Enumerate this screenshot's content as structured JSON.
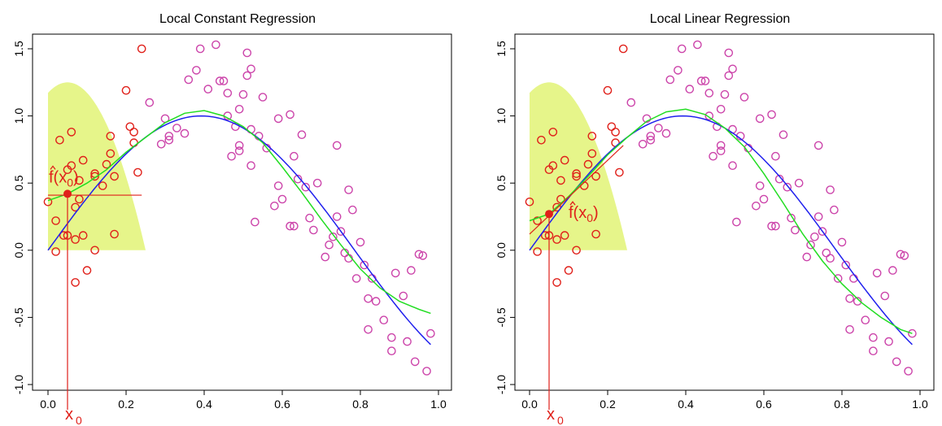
{
  "chart_data": [
    {
      "type": "scatter",
      "title": "Local Constant Regression",
      "xlabel": "",
      "ylabel": "",
      "xlim": [
        0,
        1
      ],
      "ylim": [
        -1,
        1.5
      ],
      "x_ticks": [
        "0.0",
        "0.2",
        "0.4",
        "0.6",
        "0.8",
        "1.0"
      ],
      "y_ticks": [
        "-1.0",
        "-0.5",
        "0.0",
        "0.5",
        "1.0",
        "1.5"
      ],
      "grid": false,
      "x0": 0.05,
      "x0_label": "x",
      "x0_label_sub": "0",
      "fhat_label": "f(x",
      "fhat_label_sub": "0",
      "fhat_label_close": ")",
      "fhat_value": 0.42,
      "fit": {
        "type": "constant",
        "value": 0.41,
        "range": [
          0.0,
          0.24
        ]
      },
      "kernel": {
        "center": 0.05,
        "bandwidth": 0.2,
        "height": 1.25,
        "shape": "epanechnikov",
        "color": "#e6f58a"
      },
      "points": [
        [
          0.0,
          0.36
        ],
        [
          0.02,
          -0.01
        ],
        [
          0.02,
          0.22
        ],
        [
          0.03,
          0.82
        ],
        [
          0.04,
          0.11
        ],
        [
          0.05,
          0.6
        ],
        [
          0.05,
          0.11
        ],
        [
          0.06,
          0.63
        ],
        [
          0.06,
          0.88
        ],
        [
          0.07,
          0.08
        ],
        [
          0.07,
          0.32
        ],
        [
          0.07,
          -0.24
        ],
        [
          0.08,
          0.38
        ],
        [
          0.08,
          0.52
        ],
        [
          0.09,
          0.11
        ],
        [
          0.09,
          0.67
        ],
        [
          0.1,
          -0.15
        ],
        [
          0.12,
          0.55
        ],
        [
          0.12,
          0.57
        ],
        [
          0.12,
          0.0
        ],
        [
          0.14,
          0.48
        ],
        [
          0.15,
          0.64
        ],
        [
          0.16,
          0.72
        ],
        [
          0.16,
          0.85
        ],
        [
          0.17,
          0.12
        ],
        [
          0.17,
          0.55
        ],
        [
          0.2,
          1.19
        ],
        [
          0.21,
          0.92
        ],
        [
          0.22,
          0.88
        ],
        [
          0.22,
          0.8
        ],
        [
          0.23,
          0.58
        ],
        [
          0.24,
          1.5
        ],
        [
          0.26,
          1.1
        ],
        [
          0.29,
          0.79
        ],
        [
          0.3,
          0.98
        ],
        [
          0.31,
          0.85
        ],
        [
          0.31,
          0.82
        ],
        [
          0.33,
          0.91
        ],
        [
          0.35,
          0.87
        ],
        [
          0.36,
          1.27
        ],
        [
          0.38,
          1.34
        ],
        [
          0.39,
          1.5
        ],
        [
          0.41,
          1.2
        ],
        [
          0.43,
          1.53
        ],
        [
          0.44,
          1.26
        ],
        [
          0.45,
          1.26
        ],
        [
          0.46,
          1.17
        ],
        [
          0.46,
          1.0
        ],
        [
          0.47,
          0.7
        ],
        [
          0.48,
          0.92
        ],
        [
          0.49,
          0.78
        ],
        [
          0.49,
          0.74
        ],
        [
          0.49,
          1.05
        ],
        [
          0.5,
          1.16
        ],
        [
          0.51,
          1.3
        ],
        [
          0.51,
          1.47
        ],
        [
          0.52,
          1.35
        ],
        [
          0.52,
          0.63
        ],
        [
          0.52,
          0.9
        ],
        [
          0.53,
          0.21
        ],
        [
          0.54,
          0.85
        ],
        [
          0.55,
          1.14
        ],
        [
          0.56,
          0.76
        ],
        [
          0.58,
          0.33
        ],
        [
          0.59,
          0.98
        ],
        [
          0.59,
          0.48
        ],
        [
          0.6,
          0.38
        ],
        [
          0.62,
          1.01
        ],
        [
          0.62,
          0.18
        ],
        [
          0.63,
          0.18
        ],
        [
          0.63,
          0.7
        ],
        [
          0.64,
          0.53
        ],
        [
          0.65,
          0.86
        ],
        [
          0.66,
          0.47
        ],
        [
          0.67,
          0.24
        ],
        [
          0.68,
          0.15
        ],
        [
          0.69,
          0.5
        ],
        [
          0.71,
          -0.05
        ],
        [
          0.72,
          0.04
        ],
        [
          0.73,
          0.1
        ],
        [
          0.74,
          0.25
        ],
        [
          0.74,
          0.78
        ],
        [
          0.75,
          0.14
        ],
        [
          0.76,
          -0.02
        ],
        [
          0.77,
          -0.06
        ],
        [
          0.77,
          0.45
        ],
        [
          0.78,
          0.3
        ],
        [
          0.79,
          -0.21
        ],
        [
          0.8,
          0.06
        ],
        [
          0.81,
          -0.11
        ],
        [
          0.82,
          -0.59
        ],
        [
          0.82,
          -0.36
        ],
        [
          0.83,
          -0.21
        ],
        [
          0.84,
          -0.38
        ],
        [
          0.86,
          -0.52
        ],
        [
          0.88,
          -0.65
        ],
        [
          0.88,
          -0.75
        ],
        [
          0.89,
          -0.17
        ],
        [
          0.91,
          -0.34
        ],
        [
          0.92,
          -0.68
        ],
        [
          0.93,
          -0.15
        ],
        [
          0.94,
          -0.83
        ],
        [
          0.95,
          -0.03
        ],
        [
          0.96,
          -0.04
        ],
        [
          0.97,
          -0.9
        ],
        [
          0.98,
          -0.62
        ]
      ],
      "red_points_max_x": 0.25,
      "colors": {
        "points_near": "#e0201a",
        "points_far": "#cc44aa",
        "true_curve": "#2020ee",
        "fitted_curve": "#22dd22",
        "local_fit": "#e0201a",
        "axis": "#000000"
      }
    },
    {
      "type": "scatter",
      "title": "Local Linear Regression",
      "xlabel": "",
      "ylabel": "",
      "xlim": [
        0,
        1
      ],
      "ylim": [
        -1,
        1.5
      ],
      "x_ticks": [
        "0.0",
        "0.2",
        "0.4",
        "0.6",
        "0.8",
        "1.0"
      ],
      "y_ticks": [
        "-1.0",
        "-0.5",
        "0.0",
        "0.5",
        "1.0",
        "1.5"
      ],
      "grid": false,
      "x0": 0.05,
      "x0_label": "x",
      "x0_label_sub": "0",
      "fhat_label": "f(x",
      "fhat_label_sub": "0",
      "fhat_label_close": ")",
      "fhat_value": 0.27,
      "fit": {
        "type": "linear",
        "x": [
          0.0,
          0.24
        ],
        "y": [
          0.12,
          0.78
        ]
      },
      "kernel": {
        "center": 0.05,
        "bandwidth": 0.2,
        "height": 1.25,
        "shape": "epanechnikov",
        "color": "#e6f58a"
      },
      "points": [
        [
          0.0,
          0.36
        ],
        [
          0.02,
          -0.01
        ],
        [
          0.02,
          0.22
        ],
        [
          0.03,
          0.82
        ],
        [
          0.04,
          0.11
        ],
        [
          0.05,
          0.6
        ],
        [
          0.05,
          0.11
        ],
        [
          0.06,
          0.63
        ],
        [
          0.06,
          0.88
        ],
        [
          0.07,
          0.08
        ],
        [
          0.07,
          0.32
        ],
        [
          0.07,
          -0.24
        ],
        [
          0.08,
          0.38
        ],
        [
          0.08,
          0.52
        ],
        [
          0.09,
          0.11
        ],
        [
          0.09,
          0.67
        ],
        [
          0.1,
          -0.15
        ],
        [
          0.12,
          0.55
        ],
        [
          0.12,
          0.57
        ],
        [
          0.12,
          0.0
        ],
        [
          0.14,
          0.48
        ],
        [
          0.15,
          0.64
        ],
        [
          0.16,
          0.72
        ],
        [
          0.16,
          0.85
        ],
        [
          0.17,
          0.12
        ],
        [
          0.17,
          0.55
        ],
        [
          0.2,
          1.19
        ],
        [
          0.21,
          0.92
        ],
        [
          0.22,
          0.88
        ],
        [
          0.22,
          0.8
        ],
        [
          0.23,
          0.58
        ],
        [
          0.24,
          1.5
        ],
        [
          0.26,
          1.1
        ],
        [
          0.29,
          0.79
        ],
        [
          0.3,
          0.98
        ],
        [
          0.31,
          0.85
        ],
        [
          0.31,
          0.82
        ],
        [
          0.33,
          0.91
        ],
        [
          0.35,
          0.87
        ],
        [
          0.36,
          1.27
        ],
        [
          0.38,
          1.34
        ],
        [
          0.39,
          1.5
        ],
        [
          0.41,
          1.2
        ],
        [
          0.43,
          1.53
        ],
        [
          0.44,
          1.26
        ],
        [
          0.45,
          1.26
        ],
        [
          0.46,
          1.17
        ],
        [
          0.46,
          1.0
        ],
        [
          0.47,
          0.7
        ],
        [
          0.48,
          0.92
        ],
        [
          0.49,
          0.78
        ],
        [
          0.49,
          0.74
        ],
        [
          0.49,
          1.05
        ],
        [
          0.5,
          1.16
        ],
        [
          0.51,
          1.3
        ],
        [
          0.51,
          1.47
        ],
        [
          0.52,
          1.35
        ],
        [
          0.52,
          0.63
        ],
        [
          0.52,
          0.9
        ],
        [
          0.53,
          0.21
        ],
        [
          0.54,
          0.85
        ],
        [
          0.55,
          1.14
        ],
        [
          0.56,
          0.76
        ],
        [
          0.58,
          0.33
        ],
        [
          0.59,
          0.98
        ],
        [
          0.59,
          0.48
        ],
        [
          0.6,
          0.38
        ],
        [
          0.62,
          1.01
        ],
        [
          0.62,
          0.18
        ],
        [
          0.63,
          0.18
        ],
        [
          0.63,
          0.7
        ],
        [
          0.64,
          0.53
        ],
        [
          0.65,
          0.86
        ],
        [
          0.66,
          0.47
        ],
        [
          0.67,
          0.24
        ],
        [
          0.68,
          0.15
        ],
        [
          0.69,
          0.5
        ],
        [
          0.71,
          -0.05
        ],
        [
          0.72,
          0.04
        ],
        [
          0.73,
          0.1
        ],
        [
          0.74,
          0.25
        ],
        [
          0.74,
          0.78
        ],
        [
          0.75,
          0.14
        ],
        [
          0.76,
          -0.02
        ],
        [
          0.77,
          -0.06
        ],
        [
          0.77,
          0.45
        ],
        [
          0.78,
          0.3
        ],
        [
          0.79,
          -0.21
        ],
        [
          0.8,
          0.06
        ],
        [
          0.81,
          -0.11
        ],
        [
          0.82,
          -0.59
        ],
        [
          0.82,
          -0.36
        ],
        [
          0.83,
          -0.21
        ],
        [
          0.84,
          -0.38
        ],
        [
          0.86,
          -0.52
        ],
        [
          0.88,
          -0.65
        ],
        [
          0.88,
          -0.75
        ],
        [
          0.89,
          -0.17
        ],
        [
          0.91,
          -0.34
        ],
        [
          0.92,
          -0.68
        ],
        [
          0.93,
          -0.15
        ],
        [
          0.94,
          -0.83
        ],
        [
          0.95,
          -0.03
        ],
        [
          0.96,
          -0.04
        ],
        [
          0.97,
          -0.9
        ],
        [
          0.98,
          -0.62
        ]
      ],
      "red_points_max_x": 0.25,
      "colors": {
        "points_near": "#e0201a",
        "points_far": "#cc44aa",
        "true_curve": "#2020ee",
        "fitted_curve": "#22dd22",
        "local_fit": "#e0201a",
        "axis": "#000000"
      }
    }
  ],
  "true_curve": {
    "function": "sin(4x)",
    "xlim": [
      0,
      0.98
    ]
  },
  "fitted_curve": {
    "x": [
      0.0,
      0.05,
      0.1,
      0.15,
      0.2,
      0.25,
      0.3,
      0.35,
      0.4,
      0.45,
      0.5,
      0.55,
      0.6,
      0.65,
      0.7,
      0.75,
      0.8,
      0.85,
      0.9,
      0.95,
      0.98
    ],
    "y": [
      0.37,
      0.42,
      0.5,
      0.6,
      0.73,
      0.84,
      0.95,
      1.02,
      1.04,
      1.0,
      0.92,
      0.8,
      0.62,
      0.43,
      0.23,
      0.04,
      -0.14,
      -0.28,
      -0.38,
      -0.44,
      -0.47
    ]
  },
  "fitted_curve_right": {
    "x": [
      0.0,
      0.05,
      0.1,
      0.15,
      0.2,
      0.25,
      0.3,
      0.35,
      0.4,
      0.45,
      0.5,
      0.55,
      0.6,
      0.65,
      0.7,
      0.75,
      0.8,
      0.85,
      0.9,
      0.95,
      0.98
    ],
    "y": [
      0.22,
      0.27,
      0.4,
      0.55,
      0.71,
      0.84,
      0.96,
      1.03,
      1.05,
      1.01,
      0.91,
      0.77,
      0.57,
      0.35,
      0.12,
      -0.08,
      -0.25,
      -0.39,
      -0.5,
      -0.59,
      -0.62
    ]
  }
}
